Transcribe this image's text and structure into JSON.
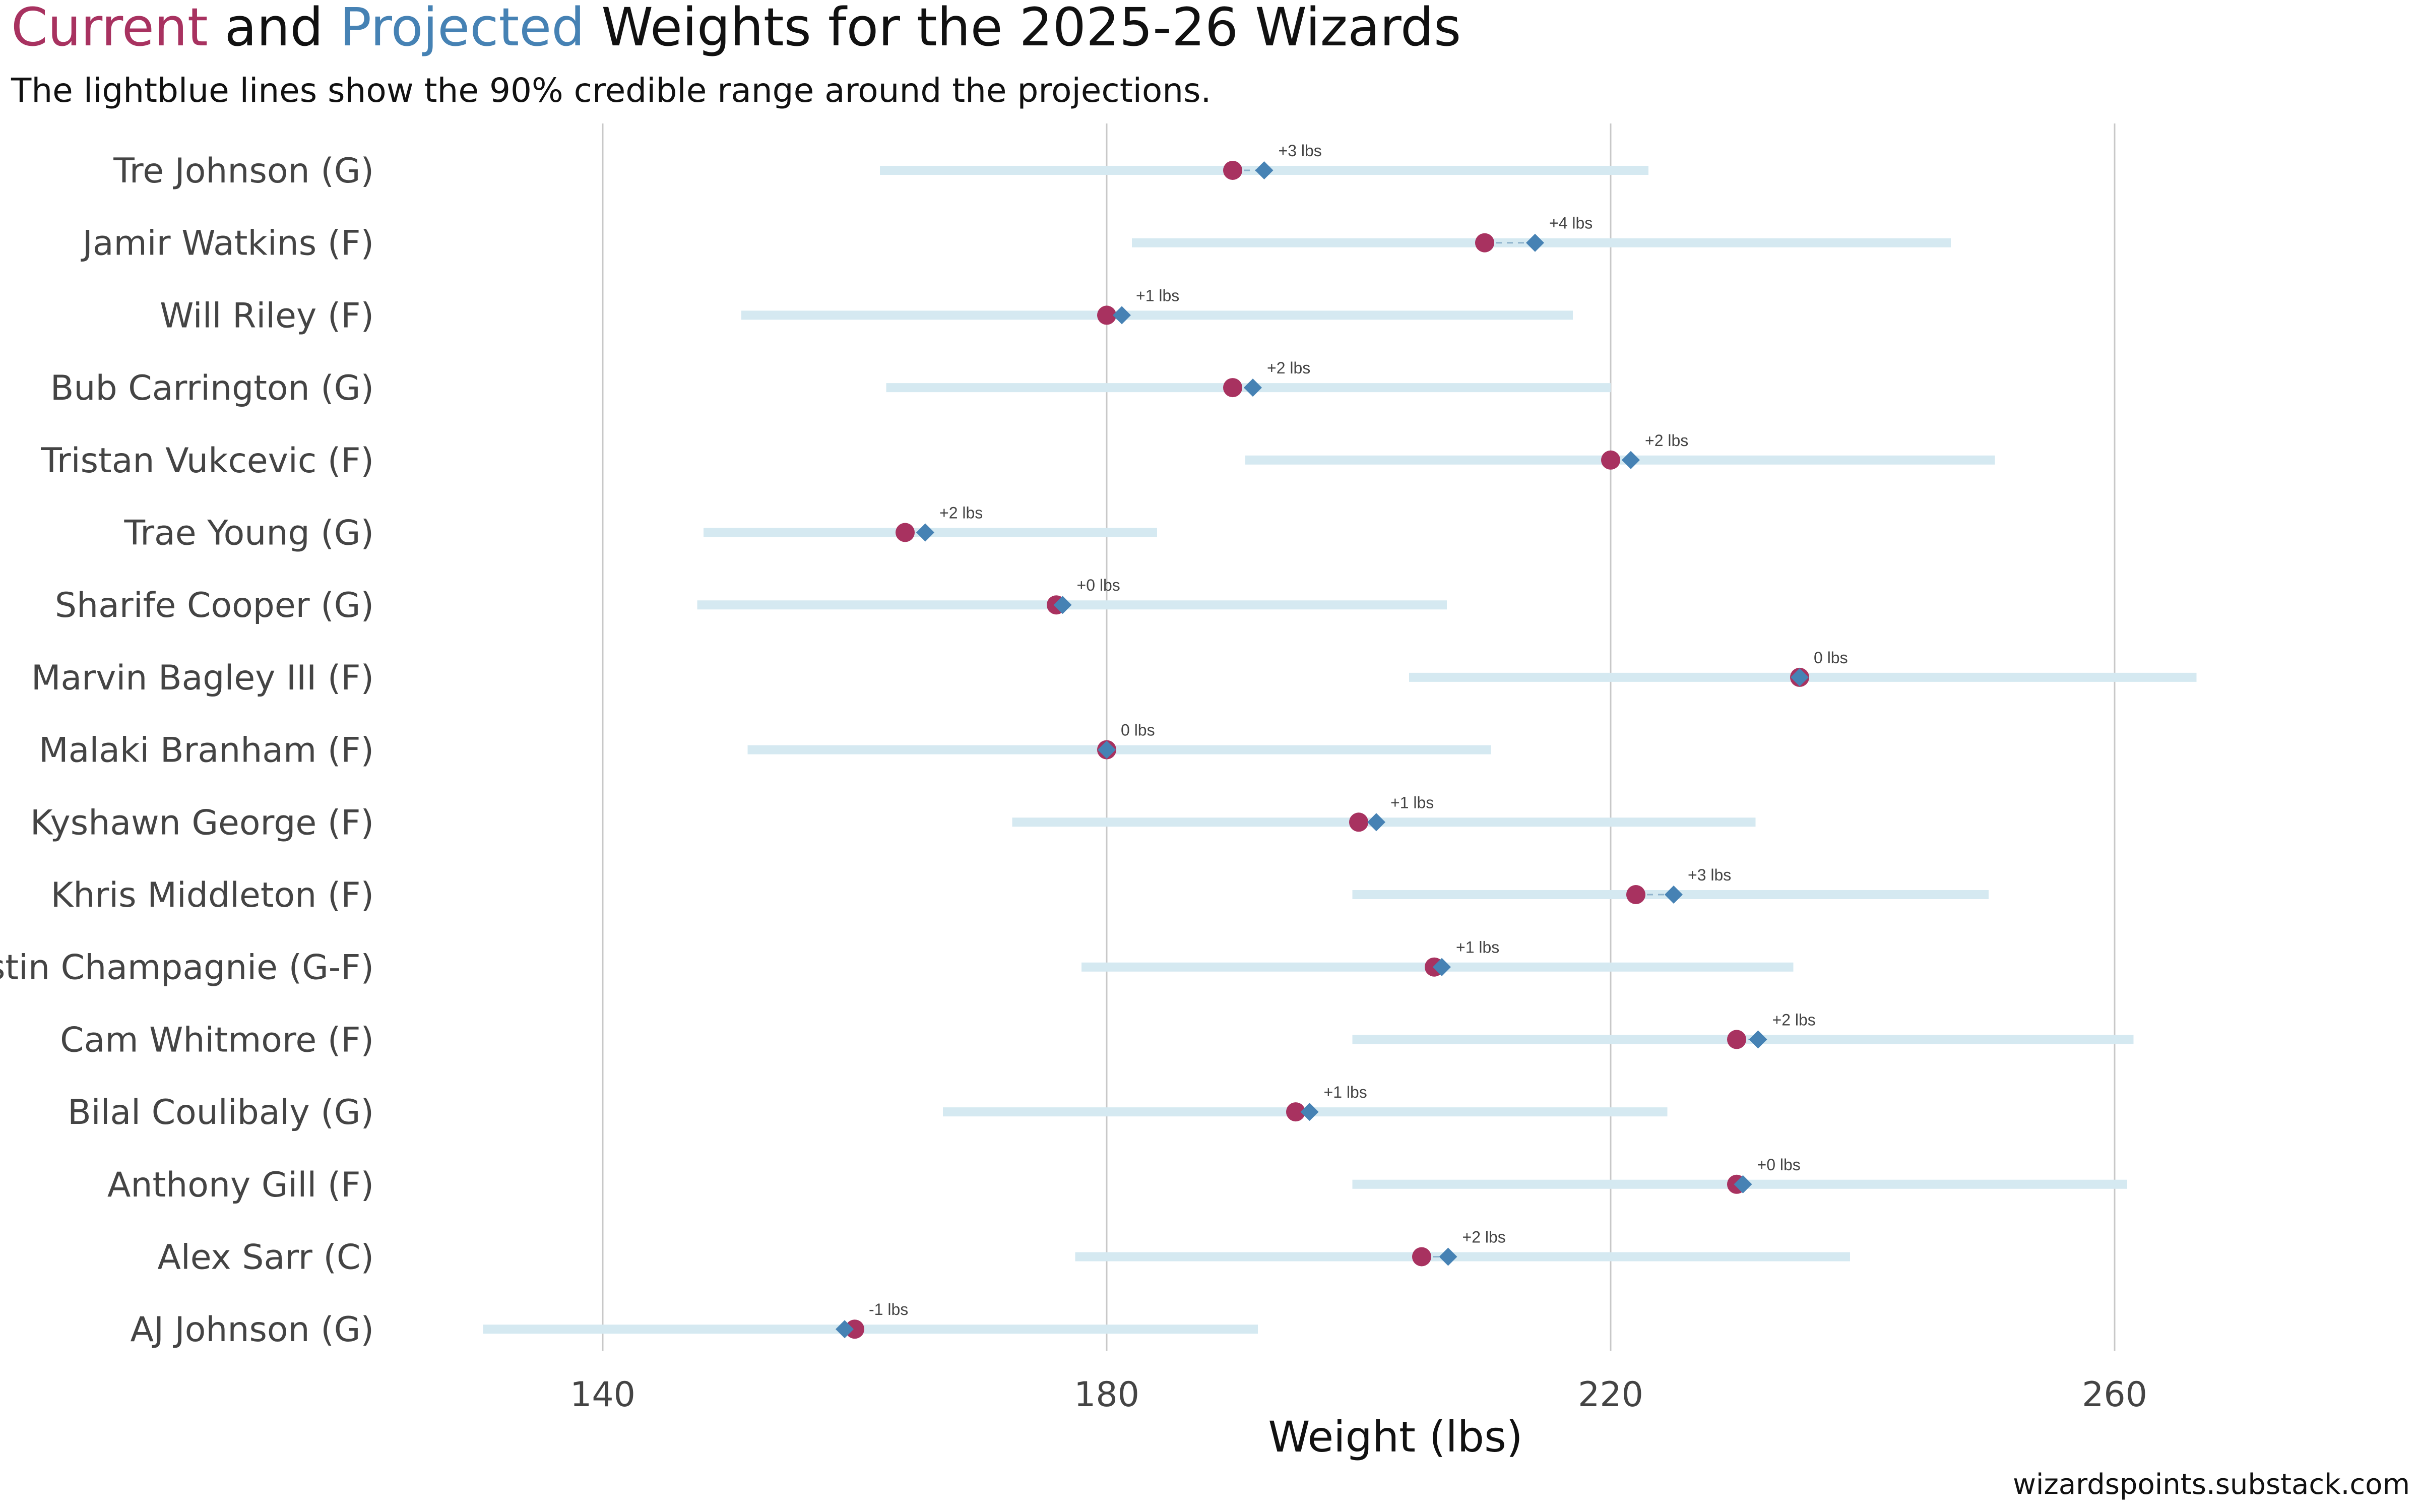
{
  "chart_data": {
    "type": "dot-range",
    "title_parts": [
      {
        "text": "Current",
        "color": "#a83260"
      },
      {
        "text": " and ",
        "color": "#111111"
      },
      {
        "text": "Projected",
        "color": "#4682b4"
      },
      {
        "text": " Weights for the 2025-26 Wizards",
        "color": "#111111"
      }
    ],
    "subtitle": "The lightblue lines show the 90% credible range around the projections.",
    "xlabel": "Weight (lbs)",
    "xlim": [
      128,
      272
    ],
    "xticks": [
      140,
      180,
      220,
      260
    ],
    "grid": true,
    "credit": "wizardspoints.substack.com",
    "colors": {
      "current": "#a83260",
      "projected": "#4682b4",
      "range": "#d5e9f1",
      "grid": "#c8c8c8"
    },
    "players": [
      {
        "name": "Tre Johnson (G)",
        "current": 190,
        "projected": 192.5,
        "low": 162,
        "high": 223,
        "delta": "+3 lbs"
      },
      {
        "name": "Jamir Watkins (F)",
        "current": 210,
        "projected": 214,
        "low": 182,
        "high": 247,
        "delta": "+4 lbs"
      },
      {
        "name": "Will Riley (F)",
        "current": 180,
        "projected": 181.2,
        "low": 151,
        "high": 217,
        "delta": "+1 lbs"
      },
      {
        "name": "Bub Carrington (G)",
        "current": 190,
        "projected": 191.6,
        "low": 162.5,
        "high": 220,
        "delta": "+2 lbs"
      },
      {
        "name": "Tristan Vukcevic (F)",
        "current": 220,
        "projected": 221.6,
        "low": 191,
        "high": 250.5,
        "delta": "+2 lbs"
      },
      {
        "name": "Trae Young (G)",
        "current": 164,
        "projected": 165.6,
        "low": 148,
        "high": 184,
        "delta": "+2 lbs"
      },
      {
        "name": "Sharife Cooper (G)",
        "current": 176,
        "projected": 176.5,
        "low": 147.5,
        "high": 207,
        "delta": "+0 lbs"
      },
      {
        "name": "Marvin Bagley III (F)",
        "current": 235,
        "projected": 235,
        "low": 204,
        "high": 266.5,
        "delta": "0 lbs"
      },
      {
        "name": "Malaki Branham (F)",
        "current": 180,
        "projected": 180,
        "low": 151.5,
        "high": 210.5,
        "delta": "0 lbs"
      },
      {
        "name": "Kyshawn George (F)",
        "current": 200,
        "projected": 201.4,
        "low": 172.5,
        "high": 231.5,
        "delta": "+1 lbs"
      },
      {
        "name": "Khris Middleton (F)",
        "current": 222,
        "projected": 225,
        "low": 199.5,
        "high": 250,
        "delta": "+3 lbs"
      },
      {
        "name": "Justin Champagnie (G-F)",
        "current": 206,
        "projected": 206.6,
        "low": 178,
        "high": 234.5,
        "delta": "+1 lbs"
      },
      {
        "name": "Cam Whitmore (F)",
        "current": 230,
        "projected": 231.7,
        "low": 199.5,
        "high": 261.5,
        "delta": "+2 lbs"
      },
      {
        "name": "Bilal Coulibaly (G)",
        "current": 195,
        "projected": 196.1,
        "low": 167,
        "high": 224.5,
        "delta": "+1 lbs"
      },
      {
        "name": "Anthony Gill (F)",
        "current": 230,
        "projected": 230.5,
        "low": 199.5,
        "high": 261,
        "delta": "+0 lbs"
      },
      {
        "name": "Alex Sarr (C)",
        "current": 205,
        "projected": 207.1,
        "low": 177.5,
        "high": 239,
        "delta": "+2 lbs"
      },
      {
        "name": "AJ Johnson (G)",
        "current": 160,
        "projected": 159.2,
        "low": 130.5,
        "high": 192,
        "delta": "-1 lbs"
      }
    ]
  }
}
